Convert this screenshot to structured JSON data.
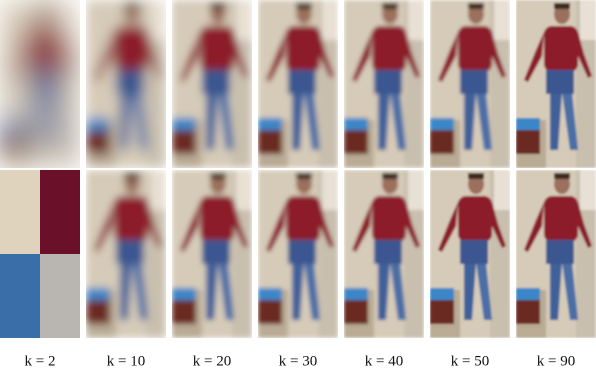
{
  "figure": {
    "labels": [
      "k = 2",
      "k = 10",
      "k = 20",
      "k = 30",
      "k = 40",
      "k = 50",
      "k = 90"
    ]
  }
}
